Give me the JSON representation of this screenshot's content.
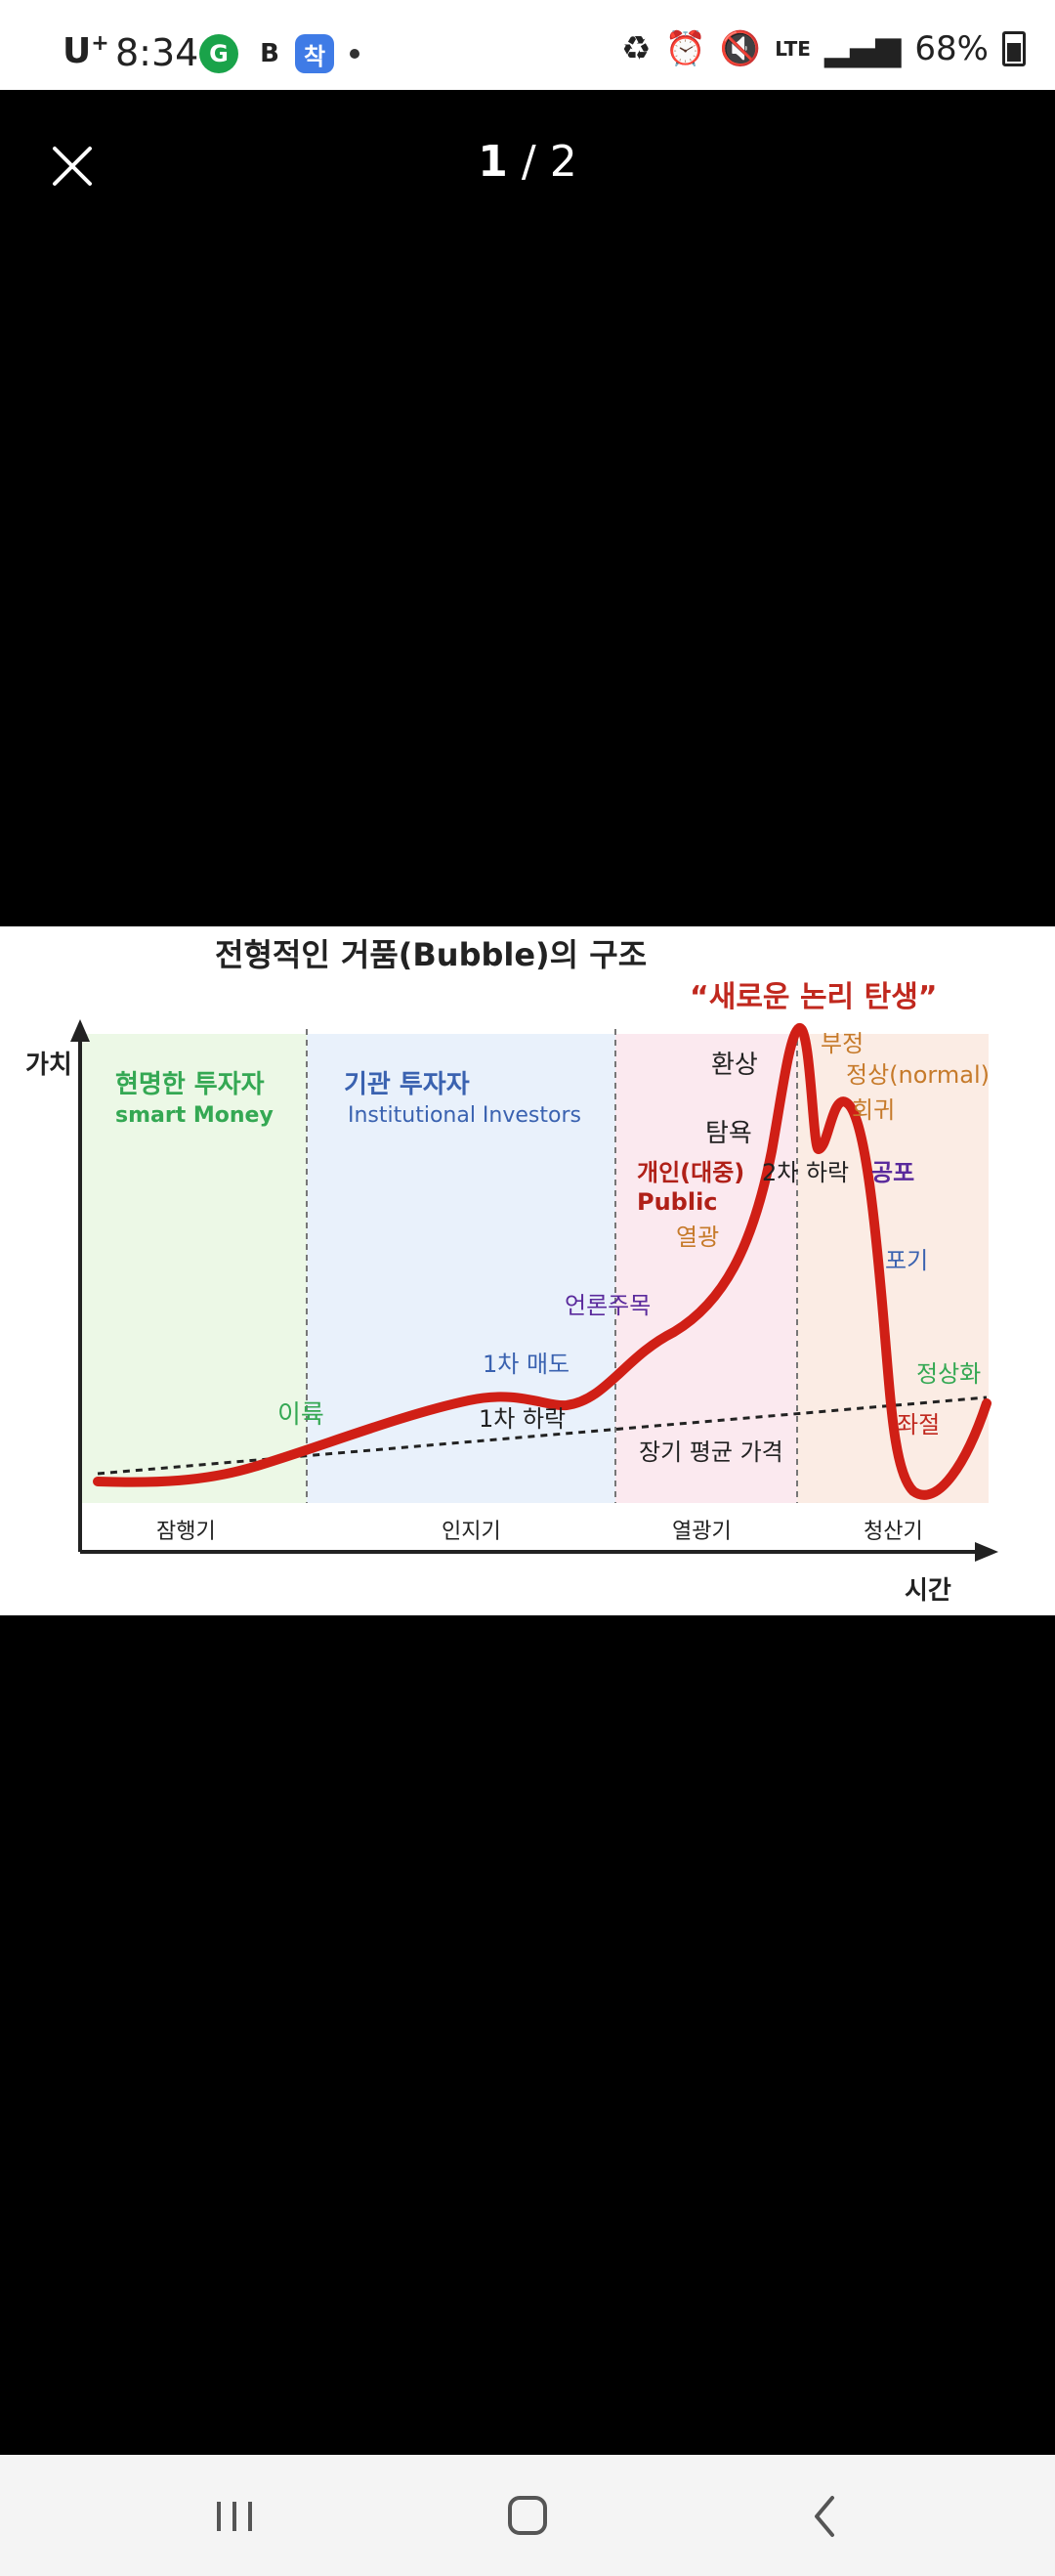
{
  "status_bar": {
    "carrier": "U",
    "carrier_plus": "+",
    "time": "8:34",
    "badge_g": "G",
    "badge_b": "B",
    "badge_k": "착",
    "network": "LTE",
    "battery": "68%"
  },
  "viewer": {
    "page_current": "1",
    "page_separator": " / ",
    "page_total": "2"
  },
  "chart": {
    "title": "전형적인 거품(Bubble)의 구조",
    "ylabel": "가치",
    "xlabel": "시간",
    "phases": [
      "잠행기",
      "인지기",
      "열광기",
      "청산기"
    ],
    "labels": {
      "smart_kr": "현명한 투자자",
      "smart_en": "smart Money",
      "inst_kr": "기관 투자자",
      "inst_en": "Institutional Investors",
      "new_logic": "“새로운 논리 탄생”",
      "fantasy": "환상",
      "greed": "탐욕",
      "public_kr": "개인(대중)",
      "public_en": "Public",
      "frenzy": "열광",
      "denial": "부정",
      "normal": "정상(normal)",
      "return": "회귀",
      "second_drop": "2차 하락",
      "fear": "공포",
      "giveup": "포기",
      "media": "언론주목",
      "first_sell": "1차 매도",
      "first_drop": "1차 하락",
      "profit": "이륙",
      "long_avg": "장기 평균 가격",
      "normalize": "정상화",
      "despair": "좌절"
    },
    "colors": {
      "green": "#34a853",
      "blue": "#3a62b0",
      "red": "#c0281e",
      "purple": "#5a2a9c",
      "curve": "#d01f16"
    }
  },
  "nav": {
    "recents": "recents-icon",
    "home": "home-icon",
    "back": "back-icon"
  }
}
